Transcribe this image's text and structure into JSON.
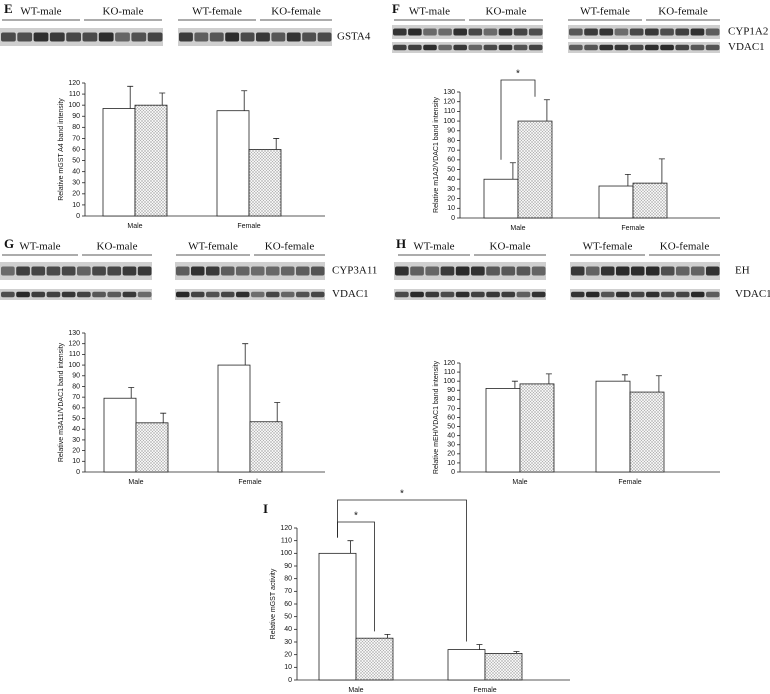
{
  "chart_data": [
    {
      "panel": "E",
      "type": "bar",
      "blot_groups": [
        "WT-male",
        "KO-male",
        "WT-female",
        "KO-female"
      ],
      "blot_rows": [
        "GSTA4"
      ],
      "y_label": "Relative mGST A4 band intensity",
      "categories": [
        "Male",
        "Female"
      ],
      "ylim": [
        0,
        120
      ],
      "yticks": [
        0,
        10,
        20,
        30,
        40,
        50,
        60,
        70,
        80,
        90,
        100,
        110,
        120
      ],
      "series": [
        {
          "color": "#ffffff",
          "values": [
            97,
            95
          ],
          "errors": [
            20,
            18
          ]
        },
        {
          "color": "#d9d9d9",
          "pattern": "dots",
          "values": [
            100,
            60
          ],
          "errors": [
            11,
            10
          ]
        }
      ]
    },
    {
      "panel": "F",
      "type": "bar",
      "blot_groups": [
        "WT-male",
        "KO-male",
        "WT-female",
        "KO-female"
      ],
      "blot_rows": [
        "CYP1A2",
        "VDAC1"
      ],
      "y_label": "Relative m1A2/VDAC1 band intensity",
      "categories": [
        "Male",
        "Female"
      ],
      "ylim": [
        0,
        130
      ],
      "yticks": [
        0,
        10,
        20,
        30,
        40,
        50,
        60,
        70,
        80,
        90,
        100,
        110,
        120,
        130
      ],
      "series": [
        {
          "color": "#ffffff",
          "values": [
            40,
            33
          ],
          "errors": [
            17,
            12
          ]
        },
        {
          "color": "#d9d9d9",
          "pattern": "dots",
          "values": [
            100,
            36
          ],
          "errors": [
            22,
            25
          ]
        }
      ],
      "annotations": [
        "*"
      ]
    },
    {
      "panel": "G",
      "type": "bar",
      "blot_groups": [
        "WT-male",
        "KO-male",
        "WT-female",
        "KO-female"
      ],
      "blot_rows": [
        "CYP3A11",
        "VDAC1"
      ],
      "y_label": "Relative m3A11/VDAC1 band intensity",
      "categories": [
        "Male",
        "Female"
      ],
      "ylim": [
        0,
        130
      ],
      "yticks": [
        0,
        10,
        20,
        30,
        40,
        50,
        60,
        70,
        80,
        90,
        100,
        110,
        120,
        130
      ],
      "series": [
        {
          "color": "#ffffff",
          "values": [
            69,
            100
          ],
          "errors": [
            10,
            20
          ]
        },
        {
          "color": "#d9d9d9",
          "pattern": "dots",
          "values": [
            46,
            47
          ],
          "errors": [
            9,
            18
          ]
        }
      ]
    },
    {
      "panel": "H",
      "type": "bar",
      "blot_groups": [
        "WT-male",
        "KO-male",
        "WT-female",
        "KO-female"
      ],
      "blot_rows": [
        "EH",
        "VDAC1"
      ],
      "y_label": "Relative mEH/VDAC1 band intensity",
      "categories": [
        "Male",
        "Female"
      ],
      "ylim": [
        0,
        120
      ],
      "yticks": [
        0,
        10,
        20,
        30,
        40,
        50,
        60,
        70,
        80,
        90,
        100,
        110,
        120
      ],
      "series": [
        {
          "color": "#ffffff",
          "values": [
            92,
            100
          ],
          "errors": [
            8,
            7
          ]
        },
        {
          "color": "#d9d9d9",
          "pattern": "dots",
          "values": [
            97,
            88
          ],
          "errors": [
            11,
            18
          ]
        }
      ]
    },
    {
      "panel": "I",
      "type": "bar",
      "y_label": "Relative mGST activity",
      "categories": [
        "Male",
        "Female"
      ],
      "ylim": [
        0,
        120
      ],
      "yticks": [
        0,
        10,
        20,
        30,
        40,
        50,
        60,
        70,
        80,
        90,
        100,
        110,
        120
      ],
      "series": [
        {
          "color": "#ffffff",
          "values": [
            100,
            24
          ],
          "errors": [
            10,
            4
          ]
        },
        {
          "color": "#d9d9d9",
          "pattern": "dots",
          "values": [
            33,
            21
          ],
          "errors": [
            3,
            1.5
          ]
        }
      ],
      "annotations": [
        "*",
        "*"
      ]
    }
  ]
}
